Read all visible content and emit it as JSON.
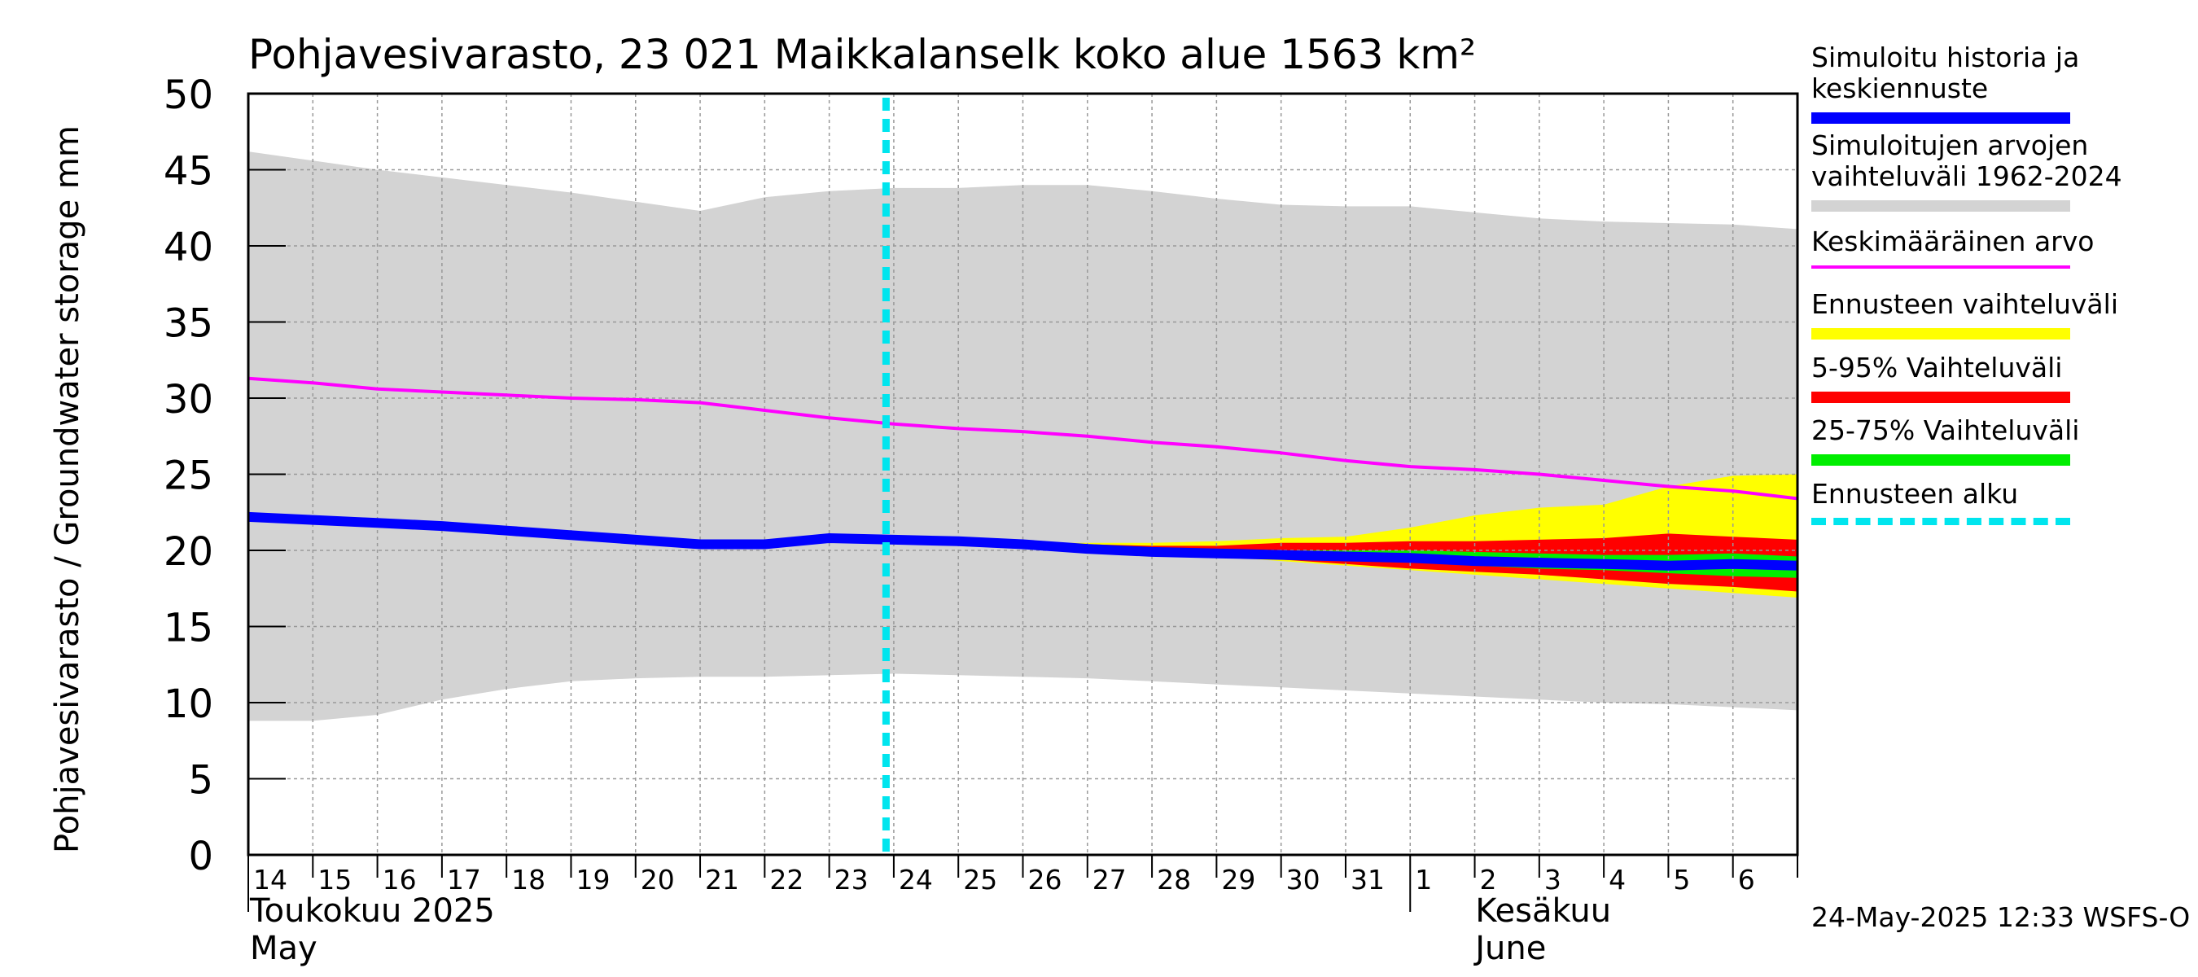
{
  "chart_data": {
    "type": "area",
    "title": "Pohjavesivarasto, 23 021 Maikkalanselk koko alue 1563 km²",
    "ylabel": "Pohjavesivarasto / Groundwater storage   mm",
    "ylim": [
      0,
      50
    ],
    "yticks": [
      "0",
      "5",
      "10",
      "15",
      "20",
      "25",
      "30",
      "35",
      "40",
      "45",
      "50"
    ],
    "grid": true,
    "xlim": [
      "2025-05-14",
      "2025-06-07"
    ],
    "xtick_labels": [
      "14",
      "15",
      "16",
      "17",
      "18",
      "19",
      "20",
      "21",
      "22",
      "23",
      "24",
      "25",
      "26",
      "27",
      "28",
      "29",
      "30",
      "31",
      "1",
      "2",
      "3",
      "4",
      "5",
      "6"
    ],
    "month_labels": [
      {
        "fi": "Toukokuu  2025",
        "en": "May"
      },
      {
        "fi": "Kesäkuu",
        "en": "June"
      }
    ],
    "forecast_start": "2025-05-24",
    "x": [
      "2025-05-14",
      "2025-05-15",
      "2025-05-16",
      "2025-05-17",
      "2025-05-18",
      "2025-05-19",
      "2025-05-20",
      "2025-05-21",
      "2025-05-22",
      "2025-05-23",
      "2025-05-24",
      "2025-05-25",
      "2025-05-26",
      "2025-05-27",
      "2025-05-28",
      "2025-05-29",
      "2025-05-30",
      "2025-05-31",
      "2025-06-01",
      "2025-06-02",
      "2025-06-03",
      "2025-06-04",
      "2025-06-05",
      "2025-06-06",
      "2025-06-07"
    ],
    "series": [
      {
        "name": "Simuloitujen arvojen vaihteluväli 1962-2024",
        "kind": "band",
        "color": "#d3d3d3",
        "lower": [
          8.8,
          8.8,
          9.2,
          10.2,
          10.9,
          11.4,
          11.6,
          11.7,
          11.7,
          11.8,
          11.9,
          11.8,
          11.7,
          11.6,
          11.4,
          11.2,
          11.0,
          10.8,
          10.6,
          10.4,
          10.2,
          10.0,
          9.9,
          9.7,
          9.5
        ],
        "upper": [
          46.2,
          45.6,
          45.0,
          44.5,
          44.0,
          43.5,
          42.9,
          42.3,
          43.2,
          43.6,
          43.8,
          43.8,
          44.0,
          44.0,
          43.6,
          43.1,
          42.7,
          42.6,
          42.6,
          42.2,
          41.8,
          41.6,
          41.5,
          41.4,
          41.1
        ]
      },
      {
        "name": "Ennusteen vaihteluväli",
        "kind": "band",
        "color": "#ffff00",
        "lower": [
          null,
          null,
          null,
          null,
          null,
          null,
          null,
          null,
          null,
          null,
          20.7,
          20.5,
          20.3,
          20.1,
          19.9,
          19.6,
          19.3,
          19.0,
          18.7,
          18.4,
          18.1,
          17.8,
          17.5,
          17.2,
          16.9
        ],
        "upper": [
          null,
          null,
          null,
          null,
          null,
          null,
          null,
          null,
          null,
          null,
          20.7,
          20.6,
          20.5,
          20.5,
          20.5,
          20.6,
          20.8,
          20.9,
          21.5,
          22.3,
          22.8,
          23.0,
          24.2,
          24.9,
          25.0
        ]
      },
      {
        "name": "5-95% Vaihteluväli",
        "kind": "band",
        "color": "#ff0000",
        "lower": [
          null,
          null,
          null,
          null,
          null,
          null,
          null,
          null,
          null,
          null,
          20.7,
          20.5,
          20.3,
          20.1,
          19.9,
          19.6,
          19.4,
          19.1,
          18.8,
          18.6,
          18.4,
          18.1,
          17.8,
          17.6,
          17.3
        ],
        "upper": [
          null,
          null,
          null,
          null,
          null,
          null,
          null,
          null,
          null,
          null,
          20.7,
          20.6,
          20.5,
          20.4,
          20.3,
          20.3,
          20.5,
          20.5,
          20.6,
          20.6,
          20.7,
          20.8,
          21.1,
          20.9,
          20.7
        ]
      },
      {
        "name": "25-75% Vaihteluväli",
        "kind": "band",
        "color": "#00ee00",
        "lower": [
          null,
          null,
          null,
          null,
          null,
          null,
          null,
          null,
          null,
          null,
          20.7,
          20.5,
          20.3,
          20.1,
          19.9,
          19.8,
          19.6,
          19.4,
          19.2,
          19.0,
          18.8,
          18.7,
          18.5,
          18.3,
          18.2
        ],
        "upper": [
          null,
          null,
          null,
          null,
          null,
          null,
          null,
          null,
          null,
          null,
          20.7,
          20.6,
          20.4,
          20.2,
          20.1,
          20.0,
          20.0,
          20.0,
          20.0,
          19.9,
          19.8,
          19.7,
          19.7,
          19.8,
          19.6
        ]
      },
      {
        "name": "Keskimääräinen arvo",
        "kind": "line",
        "color": "#ff00ff",
        "width": 4,
        "values": [
          31.3,
          31.0,
          30.6,
          30.4,
          30.2,
          30.0,
          29.9,
          29.7,
          29.2,
          28.7,
          28.3,
          28.0,
          27.8,
          27.5,
          27.1,
          26.8,
          26.4,
          25.9,
          25.5,
          25.3,
          25.0,
          24.6,
          24.2,
          23.9,
          23.4
        ]
      },
      {
        "name": "Simuloitu historia ja keskiennuste",
        "kind": "line",
        "color": "#0000ff",
        "width": 12,
        "values": [
          22.2,
          22.0,
          21.8,
          21.6,
          21.3,
          21.0,
          20.7,
          20.4,
          20.4,
          20.8,
          20.7,
          20.6,
          20.4,
          20.1,
          19.9,
          19.8,
          19.7,
          19.6,
          19.5,
          19.3,
          19.2,
          19.1,
          19.0,
          19.1,
          19.0
        ]
      }
    ],
    "legend_position": "right",
    "legend": [
      {
        "label": "Simuloitu historia ja\nkeskiennuste",
        "color": "#0000ff",
        "style": "thick"
      },
      {
        "label": "Simuloitujen arvojen\nvaihteluväli 1962-2024",
        "color": "#d3d3d3",
        "style": "band"
      },
      {
        "label": "Keskimääräinen arvo",
        "color": "#ff00ff",
        "style": "thin"
      },
      {
        "label": "Ennusteen vaihteluväli",
        "color": "#ffff00",
        "style": "band"
      },
      {
        "label": "5-95% Vaihteluväli",
        "color": "#ff0000",
        "style": "band"
      },
      {
        "label": "25-75% Vaihteluväli",
        "color": "#00ee00",
        "style": "band"
      },
      {
        "label": "Ennusteen alku",
        "color": "#00e5ee",
        "style": "dashed"
      }
    ]
  },
  "footer": {
    "timestamp": "24-May-2025 12:33 WSFS-O"
  }
}
